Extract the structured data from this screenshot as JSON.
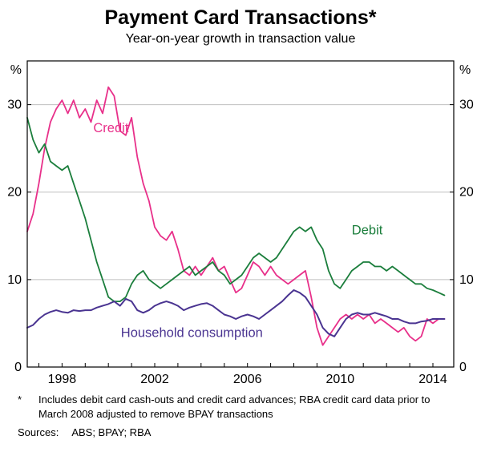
{
  "header": {
    "title": "Payment Card Transactions*",
    "subtitle": "Year-on-year growth in transaction value"
  },
  "footer": {
    "footnote_marker": "*",
    "footnote_text": "Includes debit card cash-outs and credit card advances; RBA credit card data prior to March 2008 adjusted to remove BPAY transactions",
    "sources_label": "Sources:",
    "sources_text": "ABS; BPAY; RBA"
  },
  "chart_data": {
    "type": "line",
    "title": "Payment Card Transactions*",
    "subtitle": "Year-on-year growth in transaction value",
    "ylabel_left": "%",
    "ylabel_right": "%",
    "ylim": [
      0,
      35
    ],
    "yticks": [
      0,
      10,
      20,
      30
    ],
    "xlim": [
      1996.5,
      2014.9
    ],
    "xtick_labels": [
      1998,
      2002,
      2006,
      2010,
      2014
    ],
    "grid": "horizontal",
    "grid_color": "#bfbfbf",
    "x_start": 1996.5,
    "x_step": 0.25,
    "series": [
      {
        "name": "Credit",
        "color": "#e8308a",
        "width": 1.8,
        "values": [
          15.5,
          17.5,
          21,
          25,
          28,
          29.5,
          30.5,
          29,
          30.5,
          28.5,
          29.5,
          28,
          30.5,
          29,
          32,
          31,
          27,
          26.5,
          28.5,
          24,
          21,
          19,
          16,
          15,
          14.5,
          15.5,
          13.5,
          11,
          10.5,
          11.5,
          10.5,
          11.5,
          12.5,
          11,
          11.5,
          10,
          8.5,
          9,
          10.5,
          12,
          11.5,
          10.5,
          11.5,
          10.5,
          10,
          9.5,
          10,
          10.5,
          11,
          8,
          4.5,
          2.5,
          3.5,
          4.5,
          5.5,
          6,
          5.5,
          6,
          5.5,
          6,
          5,
          5.5,
          5,
          4.5,
          4,
          4.5,
          3.5,
          3,
          3.5,
          5.5,
          5,
          5.5,
          5.5
        ]
      },
      {
        "name": "Debit",
        "color": "#1b7e3c",
        "width": 1.8,
        "values": [
          28.5,
          26,
          24.5,
          25.5,
          23.5,
          23,
          22.5,
          23,
          21,
          19,
          17,
          14.5,
          12,
          10,
          8,
          7.5,
          7.5,
          8,
          9.5,
          10.5,
          11,
          10,
          9.5,
          9,
          9.5,
          10,
          10.5,
          11,
          11.5,
          10.5,
          11,
          11.5,
          12,
          11,
          10.5,
          9.5,
          10,
          10.5,
          11.5,
          12.5,
          13,
          12.5,
          12,
          12.5,
          13.5,
          14.5,
          15.5,
          16,
          15.5,
          16,
          14.5,
          13.5,
          11,
          9.5,
          9,
          10,
          11,
          11.5,
          12,
          12,
          11.5,
          11.5,
          11,
          11.5,
          11,
          10.5,
          10,
          9.5,
          9.5,
          9,
          8.8,
          8.5,
          8.2
        ]
      },
      {
        "name": "Household consumption",
        "color": "#4a3491",
        "width": 2,
        "values": [
          4.5,
          4.8,
          5.5,
          6,
          6.3,
          6.5,
          6.3,
          6.2,
          6.5,
          6.4,
          6.5,
          6.5,
          6.8,
          7,
          7.2,
          7.5,
          7,
          7.8,
          7.5,
          6.5,
          6.2,
          6.5,
          7,
          7.3,
          7.5,
          7.3,
          7,
          6.5,
          6.8,
          7,
          7.2,
          7.3,
          7,
          6.5,
          6,
          5.8,
          5.5,
          5.8,
          6,
          5.8,
          5.5,
          6,
          6.5,
          7,
          7.5,
          8.2,
          8.8,
          8.5,
          8,
          7,
          6,
          4.5,
          3.8,
          3.5,
          4.5,
          5.5,
          6,
          6.2,
          6,
          6,
          6.2,
          6,
          5.8,
          5.5,
          5.5,
          5.2,
          5,
          5,
          5.2,
          5.3,
          5.5,
          5.5,
          5.5
        ]
      }
    ],
    "annotations": [
      {
        "text": "Credit",
        "x": 1999.35,
        "y": 27.3,
        "color": "#e8308a",
        "anchor": "start"
      },
      {
        "text": "Debit",
        "x": 2010.5,
        "y": 15.6,
        "color": "#1b7e3c",
        "anchor": "start"
      },
      {
        "text": "Household consumption",
        "x": 2003.6,
        "y": 3.9,
        "color": "#4a3491",
        "anchor": "middle"
      }
    ],
    "legend_position": "inline-labels"
  }
}
